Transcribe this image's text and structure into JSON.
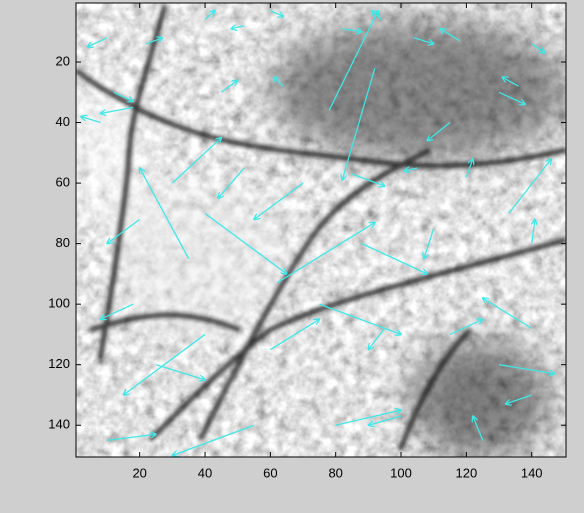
{
  "chart_data": {
    "type": "quiver",
    "color": "#3ee8e8",
    "xlim": [
      0.5,
      150.5
    ],
    "ylim": [
      0.5,
      150.5
    ],
    "y_reversed": true,
    "xticks": [
      20,
      40,
      60,
      80,
      100,
      120,
      140
    ],
    "yticks": [
      20,
      40,
      60,
      80,
      100,
      120,
      140
    ],
    "x": [
      10,
      22,
      40,
      52,
      60,
      82,
      94,
      104,
      118,
      140,
      130,
      136,
      12,
      18,
      8,
      45,
      64,
      78,
      92,
      115,
      133,
      120,
      30,
      52,
      70,
      18,
      40,
      88,
      110,
      140,
      25,
      40,
      60,
      75,
      95,
      115,
      130,
      140,
      80,
      100,
      55,
      10,
      125,
      140,
      35,
      62,
      85,
      20,
      105
    ],
    "y": [
      12,
      14,
      6,
      8,
      3,
      9,
      6,
      12,
      13,
      14,
      30,
      28,
      30,
      35,
      40,
      30,
      28,
      36,
      22,
      40,
      70,
      58,
      60,
      55,
      60,
      100,
      70,
      80,
      75,
      80,
      120,
      110,
      115,
      100,
      108,
      110,
      120,
      130,
      140,
      137,
      140,
      145,
      145,
      108,
      85,
      93,
      57,
      72,
      55
    ],
    "u": [
      -6,
      5,
      3,
      -4,
      4,
      6,
      -3,
      6,
      -6,
      4,
      8,
      -5,
      6,
      -10,
      -6,
      5,
      -3,
      15,
      -10,
      -7,
      13,
      2,
      15,
      -8,
      -15,
      -10,
      25,
      20,
      -3,
      1,
      15,
      -25,
      15,
      25,
      -5,
      10,
      17,
      -8,
      20,
      -10,
      -25,
      15,
      -3,
      -15,
      -15,
      30,
      10,
      -10,
      -4
    ],
    "v": [
      3,
      -2,
      -3,
      1,
      2,
      1,
      -3,
      2,
      -4,
      3,
      4,
      -3,
      3,
      2,
      -2,
      -4,
      -3,
      -33,
      37,
      6,
      -18,
      -6,
      -15,
      10,
      12,
      5,
      20,
      10,
      10,
      -8,
      5,
      20,
      -10,
      10,
      7,
      -5,
      3,
      3,
      -5,
      3,
      10,
      -2,
      -8,
      -10,
      -30,
      -20,
      4,
      8,
      1
    ]
  }
}
